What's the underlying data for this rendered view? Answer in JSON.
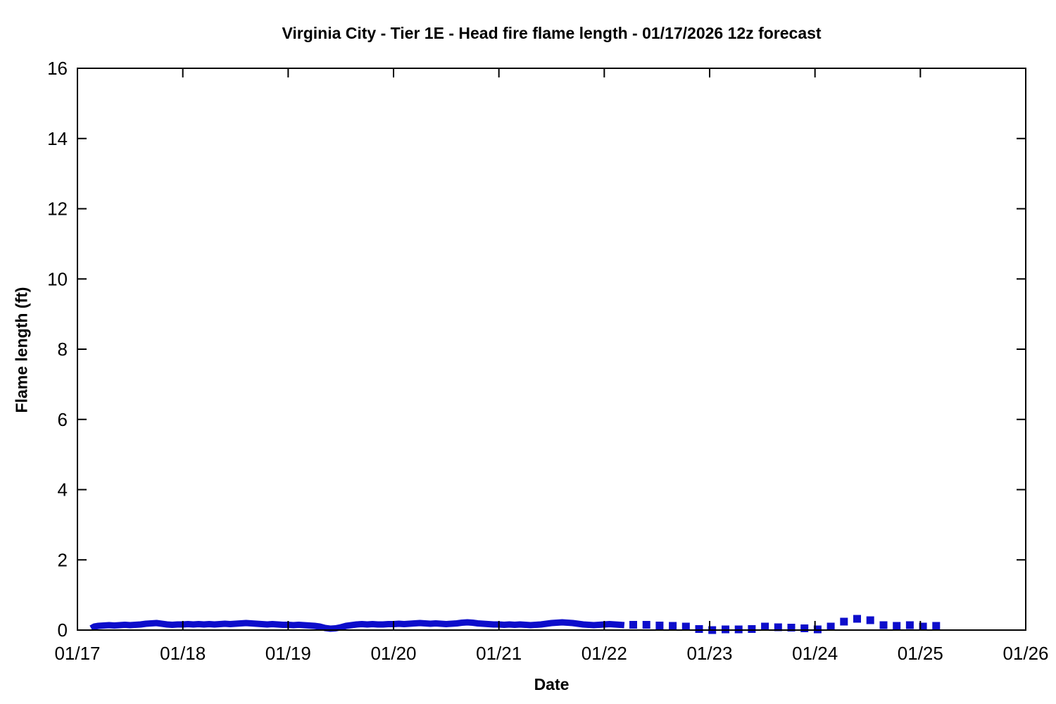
{
  "chart_data": {
    "type": "line",
    "title": "Virginia City - Tier 1E - Head fire flame length - 01/17/2026 12z forecast",
    "xlabel": "Date",
    "ylabel": "Flame length (ft)",
    "grid": false,
    "legend": "none",
    "xlim_days": [
      0,
      9
    ],
    "ylim": [
      0,
      16
    ],
    "x_tick_labels": [
      "01/17",
      "01/18",
      "01/19",
      "01/20",
      "01/21",
      "01/22",
      "01/23",
      "01/24",
      "01/25",
      "01/26"
    ],
    "x_tick_positions_days": [
      0,
      1,
      2,
      3,
      4,
      5,
      6,
      7,
      8,
      9
    ],
    "y_ticks": [
      0,
      2,
      4,
      6,
      8,
      10,
      12,
      14,
      16
    ],
    "series_color": "#0d0dcb",
    "series": [
      {
        "name": "flame-length-hourly-solid",
        "style": "solid-thick",
        "color": "#0d0dcb",
        "points": [
          [
            0.13,
            0.05
          ],
          [
            0.16,
            0.1
          ],
          [
            0.2,
            0.12
          ],
          [
            0.25,
            0.13
          ],
          [
            0.3,
            0.14
          ],
          [
            0.35,
            0.13
          ],
          [
            0.4,
            0.14
          ],
          [
            0.45,
            0.15
          ],
          [
            0.5,
            0.14
          ],
          [
            0.55,
            0.15
          ],
          [
            0.6,
            0.16
          ],
          [
            0.65,
            0.18
          ],
          [
            0.7,
            0.19
          ],
          [
            0.75,
            0.2
          ],
          [
            0.8,
            0.18
          ],
          [
            0.85,
            0.16
          ],
          [
            0.9,
            0.15
          ],
          [
            0.95,
            0.16
          ],
          [
            1.0,
            0.16
          ],
          [
            1.05,
            0.17
          ],
          [
            1.1,
            0.16
          ],
          [
            1.15,
            0.17
          ],
          [
            1.2,
            0.16
          ],
          [
            1.25,
            0.17
          ],
          [
            1.3,
            0.16
          ],
          [
            1.35,
            0.17
          ],
          [
            1.4,
            0.18
          ],
          [
            1.45,
            0.17
          ],
          [
            1.5,
            0.18
          ],
          [
            1.55,
            0.19
          ],
          [
            1.6,
            0.2
          ],
          [
            1.65,
            0.19
          ],
          [
            1.7,
            0.18
          ],
          [
            1.75,
            0.17
          ],
          [
            1.8,
            0.16
          ],
          [
            1.85,
            0.17
          ],
          [
            1.9,
            0.16
          ],
          [
            1.95,
            0.15
          ],
          [
            2.0,
            0.15
          ],
          [
            2.05,
            0.14
          ],
          [
            2.1,
            0.15
          ],
          [
            2.15,
            0.14
          ],
          [
            2.2,
            0.13
          ],
          [
            2.25,
            0.12
          ],
          [
            2.3,
            0.1
          ],
          [
            2.35,
            0.06
          ],
          [
            2.4,
            0.04
          ],
          [
            2.45,
            0.05
          ],
          [
            2.5,
            0.08
          ],
          [
            2.55,
            0.12
          ],
          [
            2.6,
            0.14
          ],
          [
            2.65,
            0.16
          ],
          [
            2.7,
            0.17
          ],
          [
            2.75,
            0.16
          ],
          [
            2.8,
            0.17
          ],
          [
            2.85,
            0.16
          ],
          [
            2.9,
            0.16
          ],
          [
            2.95,
            0.17
          ],
          [
            3.0,
            0.17
          ],
          [
            3.05,
            0.18
          ],
          [
            3.1,
            0.17
          ],
          [
            3.15,
            0.18
          ],
          [
            3.2,
            0.19
          ],
          [
            3.25,
            0.2
          ],
          [
            3.3,
            0.19
          ],
          [
            3.35,
            0.18
          ],
          [
            3.4,
            0.19
          ],
          [
            3.45,
            0.18
          ],
          [
            3.5,
            0.17
          ],
          [
            3.55,
            0.18
          ],
          [
            3.6,
            0.19
          ],
          [
            3.65,
            0.21
          ],
          [
            3.7,
            0.22
          ],
          [
            3.75,
            0.21
          ],
          [
            3.8,
            0.19
          ],
          [
            3.85,
            0.18
          ],
          [
            3.9,
            0.17
          ],
          [
            3.95,
            0.16
          ],
          [
            4.0,
            0.16
          ],
          [
            4.05,
            0.15
          ],
          [
            4.1,
            0.16
          ],
          [
            4.15,
            0.15
          ],
          [
            4.2,
            0.16
          ],
          [
            4.25,
            0.15
          ],
          [
            4.3,
            0.14
          ],
          [
            4.35,
            0.15
          ],
          [
            4.4,
            0.16
          ],
          [
            4.45,
            0.18
          ],
          [
            4.5,
            0.2
          ],
          [
            4.55,
            0.21
          ],
          [
            4.6,
            0.22
          ],
          [
            4.65,
            0.21
          ],
          [
            4.7,
            0.2
          ],
          [
            4.75,
            0.18
          ],
          [
            4.8,
            0.16
          ],
          [
            4.85,
            0.15
          ],
          [
            4.9,
            0.14
          ],
          [
            4.95,
            0.15
          ],
          [
            5.0,
            0.16
          ],
          [
            5.05,
            0.17
          ],
          [
            5.1,
            0.16
          ],
          [
            5.15,
            0.15
          ],
          [
            5.19,
            0.14
          ]
        ]
      },
      {
        "name": "flame-length-3hourly-dots",
        "style": "square-dots",
        "color": "#0d0dcb",
        "points": [
          [
            5.275,
            0.15
          ],
          [
            5.4,
            0.15
          ],
          [
            5.525,
            0.13
          ],
          [
            5.65,
            0.12
          ],
          [
            5.775,
            0.1
          ],
          [
            5.9,
            0.03
          ],
          [
            6.025,
            0.0
          ],
          [
            6.15,
            0.02
          ],
          [
            6.275,
            0.02
          ],
          [
            6.4,
            0.03
          ],
          [
            6.525,
            0.1
          ],
          [
            6.65,
            0.08
          ],
          [
            6.775,
            0.07
          ],
          [
            6.9,
            0.05
          ],
          [
            7.025,
            0.02
          ],
          [
            7.15,
            0.1
          ],
          [
            7.275,
            0.24
          ],
          [
            7.4,
            0.32
          ],
          [
            7.525,
            0.28
          ],
          [
            7.65,
            0.14
          ],
          [
            7.775,
            0.12
          ],
          [
            7.9,
            0.14
          ],
          [
            8.025,
            0.1
          ],
          [
            8.15,
            0.12
          ]
        ]
      }
    ]
  }
}
